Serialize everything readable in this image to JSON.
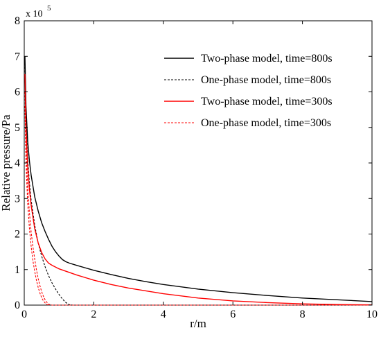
{
  "chart_data": {
    "type": "line",
    "xlabel": "r/m",
    "ylabel": "Relative pressure/Pa",
    "y_exponent_label": "x 10",
    "y_exponent_power": "5",
    "xlim": [
      0,
      10
    ],
    "ylim": [
      0,
      800000
    ],
    "x_ticks": [
      0,
      2,
      4,
      6,
      8,
      10
    ],
    "x_tick_labels": [
      "0",
      "2",
      "4",
      "6",
      "8",
      "10"
    ],
    "y_ticks": [
      0,
      100000,
      200000,
      300000,
      400000,
      500000,
      600000,
      700000,
      800000
    ],
    "y_tick_labels": [
      "0",
      "1",
      "2",
      "3",
      "4",
      "5",
      "6",
      "7",
      "8"
    ],
    "grid": false,
    "legend_position": "top-right",
    "series": [
      {
        "name": "Two-phase model, time=800s",
        "color": "#000000",
        "dash": "solid",
        "x": [
          0.02,
          0.05,
          0.1,
          0.15,
          0.2,
          0.3,
          0.4,
          0.5,
          0.6,
          0.7,
          0.8,
          0.9,
          1.0,
          1.1,
          1.2,
          1.3,
          1.5,
          2.0,
          2.5,
          3.0,
          3.5,
          4.0,
          5.0,
          6.0,
          7.0,
          8.0,
          9.0,
          10.0
        ],
        "y": [
          700000,
          560000,
          460000,
          405000,
          365000,
          305000,
          265000,
          232000,
          207000,
          185000,
          165000,
          150000,
          138000,
          128000,
          122000,
          118000,
          112000,
          98000,
          86000,
          75000,
          66000,
          58000,
          45000,
          35000,
          27000,
          20000,
          15000,
          10000
        ]
      },
      {
        "name": "One-phase model, time=800s",
        "color": "#000000",
        "dash": "dashed",
        "x": [
          0.02,
          0.05,
          0.1,
          0.15,
          0.2,
          0.3,
          0.4,
          0.5,
          0.6,
          0.7,
          0.8,
          0.9,
          1.0,
          1.1,
          1.2,
          1.3,
          1.4,
          10.0
        ],
        "y": [
          680000,
          520000,
          410000,
          345000,
          295000,
          225000,
          175000,
          138000,
          108000,
          83000,
          62000,
          45000,
          30000,
          17000,
          7000,
          1000,
          0,
          0
        ]
      },
      {
        "name": "Two-phase model, time=300s",
        "color": "#ff0000",
        "dash": "solid",
        "x": [
          0.02,
          0.05,
          0.1,
          0.15,
          0.2,
          0.3,
          0.4,
          0.5,
          0.6,
          0.7,
          0.8,
          1.0,
          1.5,
          2.0,
          2.5,
          3.0,
          4.0,
          5.0,
          6.0,
          7.0,
          8.0,
          9.0,
          10.0
        ],
        "y": [
          650000,
          500000,
          390000,
          325000,
          280000,
          215000,
          175000,
          148000,
          130000,
          118000,
          112000,
          102000,
          85000,
          70000,
          58000,
          48000,
          32000,
          20000,
          12000,
          7000,
          3500,
          1500,
          500
        ]
      },
      {
        "name": "One-phase model, time=300s",
        "color": "#ff0000",
        "dash": "dashed",
        "x": [
          0.02,
          0.05,
          0.1,
          0.15,
          0.2,
          0.25,
          0.3,
          0.35,
          0.4,
          0.45,
          0.5,
          0.55,
          0.6,
          0.65,
          0.7,
          0.75,
          0.8,
          10.0
        ],
        "y": [
          600000,
          450000,
          330000,
          260000,
          205000,
          165000,
          130000,
          100000,
          75000,
          55000,
          38000,
          25000,
          15000,
          8000,
          3000,
          500,
          0,
          0
        ]
      },
      {
        "name": "",
        "color": "#ff0000",
        "dash": "dashed",
        "x": [
          0.02,
          0.05,
          0.1,
          0.15,
          0.2,
          0.25,
          0.3,
          0.35,
          0.4,
          0.45,
          0.5,
          0.55,
          0.6,
          0.65,
          0.7
        ],
        "y": [
          560000,
          400000,
          285000,
          215000,
          165000,
          125000,
          95000,
          70000,
          50000,
          34000,
          21000,
          12000,
          6000,
          2000,
          0
        ]
      }
    ]
  }
}
